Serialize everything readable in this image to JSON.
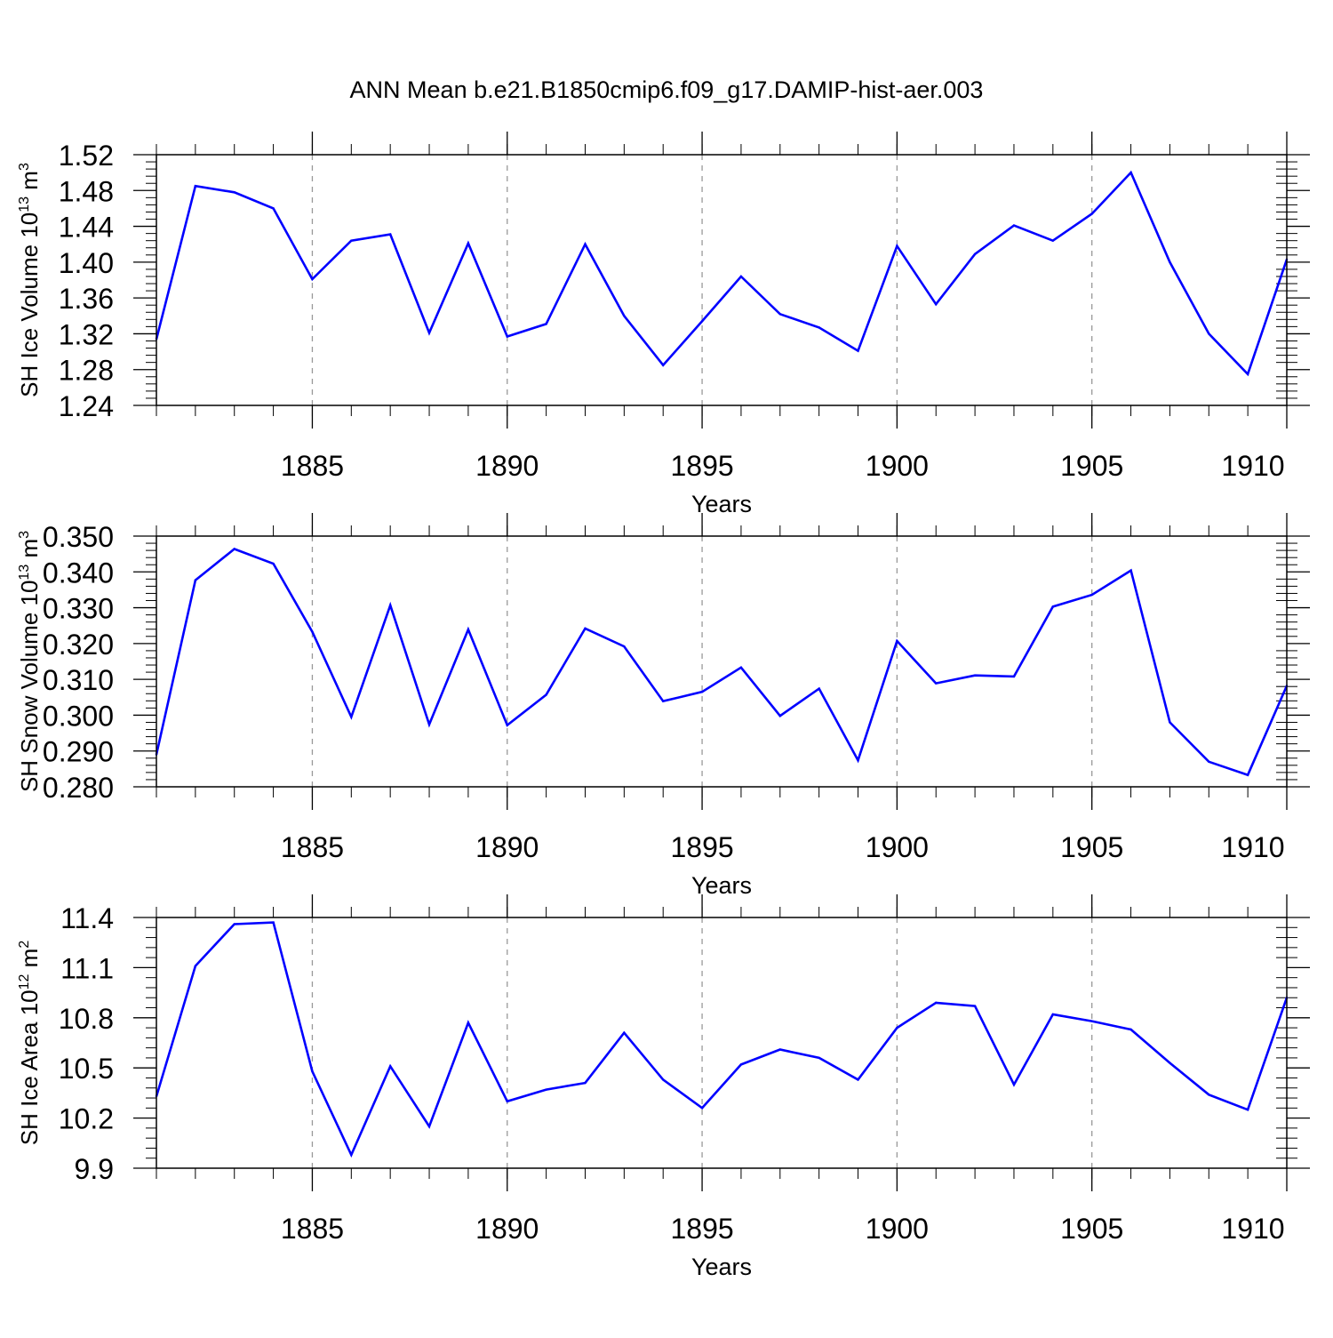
{
  "title": "ANN Mean b.e21.B1850cmip6.f09_g17.DAMIP-hist-aer.003",
  "chart_data": [
    {
      "type": "line",
      "ylabel": {
        "text": "SH Ice Volume 10",
        "exp": "13",
        "unit": " m",
        "unit_exp": "3"
      },
      "xlabel": "Years",
      "xlim": [
        1881,
        1910
      ],
      "ylim": [
        1.24,
        1.52
      ],
      "yticks": [
        "1.24",
        "1.28",
        "1.32",
        "1.36",
        "1.40",
        "1.44",
        "1.48",
        "1.52"
      ],
      "xticks": [
        "1885",
        "1890",
        "1895",
        "1900",
        "1905",
        "1910"
      ],
      "grid": "dashed vertical at major x ticks",
      "color": "#0000ff",
      "x": [
        1881,
        1882,
        1883,
        1884,
        1885,
        1886,
        1887,
        1888,
        1889,
        1890,
        1891,
        1892,
        1893,
        1894,
        1895,
        1896,
        1897,
        1898,
        1899,
        1900,
        1901,
        1902,
        1903,
        1904,
        1905,
        1906,
        1907,
        1908,
        1909,
        1910
      ],
      "values": [
        1.314,
        1.485,
        1.478,
        1.46,
        1.381,
        1.424,
        1.431,
        1.321,
        1.421,
        1.317,
        1.331,
        1.42,
        1.34,
        1.285,
        1.334,
        1.384,
        1.342,
        1.327,
        1.301,
        1.418,
        1.353,
        1.409,
        1.441,
        1.424,
        1.454,
        1.5,
        1.4,
        1.32,
        1.275,
        1.403
      ]
    },
    {
      "type": "line",
      "ylabel": {
        "text": "SH Snow Volume 10",
        "exp": "13",
        "unit": " m",
        "unit_exp": "3"
      },
      "xlabel": "Years",
      "xlim": [
        1881,
        1910
      ],
      "ylim": [
        0.28,
        0.35
      ],
      "yticks": [
        "0.280",
        "0.290",
        "0.300",
        "0.310",
        "0.320",
        "0.330",
        "0.340",
        "0.350"
      ],
      "xticks": [
        "1885",
        "1890",
        "1895",
        "1900",
        "1905",
        "1910"
      ],
      "grid": "dashed vertical at major x ticks",
      "color": "#0000ff",
      "x": [
        1881,
        1882,
        1883,
        1884,
        1885,
        1886,
        1887,
        1888,
        1889,
        1890,
        1891,
        1892,
        1893,
        1894,
        1895,
        1896,
        1897,
        1898,
        1899,
        1900,
        1901,
        1902,
        1903,
        1904,
        1905,
        1906,
        1907,
        1908,
        1909,
        1910
      ],
      "values": [
        0.289,
        0.3377,
        0.3464,
        0.3423,
        0.3233,
        0.2995,
        0.3307,
        0.2974,
        0.3239,
        0.2972,
        0.3057,
        0.3242,
        0.3192,
        0.3039,
        0.3065,
        0.3133,
        0.2998,
        0.3074,
        0.2874,
        0.3207,
        0.3089,
        0.3111,
        0.3108,
        0.3303,
        0.3336,
        0.3404,
        0.298,
        0.287,
        0.2833,
        0.3082
      ]
    },
    {
      "type": "line",
      "ylabel": {
        "text": "SH Ice Area 10",
        "exp": "12",
        "unit": " m",
        "unit_exp": "2"
      },
      "xlabel": "Years",
      "xlim": [
        1881,
        1910
      ],
      "ylim": [
        9.9,
        11.4
      ],
      "yticks": [
        "9.9",
        "10.2",
        "10.5",
        "10.8",
        "11.1",
        "11.4"
      ],
      "xticks": [
        "1885",
        "1890",
        "1895",
        "1900",
        "1905",
        "1910"
      ],
      "grid": "dashed vertical at major x ticks",
      "color": "#0000ff",
      "x": [
        1881,
        1882,
        1883,
        1884,
        1885,
        1886,
        1887,
        1888,
        1889,
        1890,
        1891,
        1892,
        1893,
        1894,
        1895,
        1896,
        1897,
        1898,
        1899,
        1900,
        1901,
        1902,
        1903,
        1904,
        1905,
        1906,
        1907,
        1908,
        1909,
        1910
      ],
      "values": [
        10.33,
        11.11,
        11.36,
        11.37,
        10.48,
        9.98,
        10.51,
        10.15,
        10.77,
        10.3,
        10.37,
        10.41,
        10.71,
        10.43,
        10.26,
        10.52,
        10.61,
        10.56,
        10.43,
        10.74,
        10.89,
        10.87,
        10.4,
        10.82,
        10.78,
        10.73,
        10.53,
        10.34,
        10.25,
        10.92
      ]
    }
  ]
}
